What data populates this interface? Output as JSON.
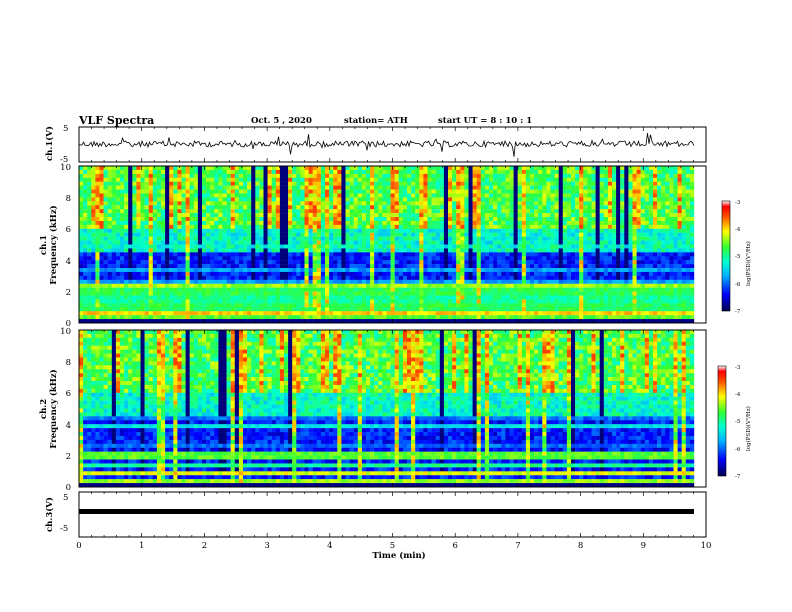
{
  "header": {
    "title": "VLF Spectra",
    "date": "Oct. 5  , 2020",
    "station": "station= ATH",
    "start": "start  UT  =   8  : 10 : 1"
  },
  "chart_data": [
    {
      "type": "line",
      "panel": "ch1-waveform",
      "ylabel": "ch.1(V)",
      "yticks": [
        "5",
        "-5"
      ],
      "ylim": [
        -5,
        5
      ],
      "xlim": [
        0,
        10
      ],
      "color": "#000000"
    },
    {
      "type": "heatmap",
      "panel": "ch1-spectrogram",
      "ylabel": "ch.1\nFrequency  (kHz)",
      "yticks": [
        "0",
        "2",
        "4",
        "6",
        "8",
        "10"
      ],
      "ylim": [
        0,
        10
      ],
      "xlim": [
        0,
        10
      ],
      "colorbar": {
        "label": "log(PSD)(V²/Hz)",
        "ticks": [
          "-3",
          "-4",
          "-5",
          "-6",
          "-7"
        ],
        "range": [
          -7,
          -3
        ]
      },
      "bands": [
        {
          "f": 0.35,
          "level": 0.55
        },
        {
          "f": 0.65,
          "level": 0.7
        },
        {
          "f": 1.0,
          "level": 0.5
        },
        {
          "f": 1.5,
          "level": 0.45
        },
        {
          "f": 2.0,
          "level": 0.5
        },
        {
          "f": 2.35,
          "level": 0.6
        },
        {
          "f": 2.7,
          "level": 0.25
        },
        {
          "f": 3.3,
          "level": 0.25
        },
        {
          "f": 4.8,
          "level": 0.35
        }
      ]
    },
    {
      "type": "heatmap",
      "panel": "ch2-spectrogram",
      "ylabel": "ch.2\nFrequency  (kHz)",
      "yticks": [
        "0",
        "2",
        "4",
        "6",
        "8",
        "10"
      ],
      "ylim": [
        0,
        10
      ],
      "xlim": [
        0,
        10
      ],
      "colorbar": {
        "label": "log(PSD)(V²/Hz)",
        "ticks": [
          "-3",
          "-4",
          "-5",
          "-6",
          "-7"
        ],
        "range": [
          -7,
          -3
        ]
      },
      "bands": [
        {
          "f": 0.4,
          "level": 0.6
        },
        {
          "f": 0.8,
          "level": 0.65
        },
        {
          "f": 1.3,
          "level": 0.45
        },
        {
          "f": 1.8,
          "level": 0.5
        },
        {
          "f": 2.0,
          "level": 0.55
        },
        {
          "f": 2.6,
          "level": 0.2
        },
        {
          "f": 3.8,
          "level": 0.35
        },
        {
          "f": 4.3,
          "level": 0.2
        }
      ]
    },
    {
      "type": "line",
      "panel": "ch3-waveform",
      "ylabel": "ch.3(V)",
      "yticks": [
        "5",
        "-5"
      ],
      "ylim": [
        -5,
        5
      ],
      "xlim": [
        0,
        10
      ],
      "xlabel": "Time  (min)",
      "xticks": [
        "0",
        "1",
        "2",
        "3",
        "4",
        "5",
        "6",
        "7",
        "8",
        "9",
        "10"
      ],
      "color": "#000000"
    }
  ]
}
